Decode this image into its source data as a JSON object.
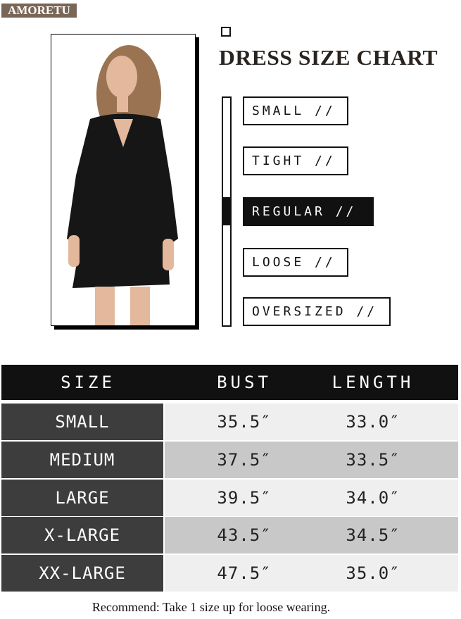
{
  "brand": "AMORETU",
  "title": "DRESS SIZE CHART",
  "fit_scale": {
    "items": [
      "SMALL //",
      "TIGHT //",
      "REGULAR //",
      "LOOSE //",
      "OVERSIZED //"
    ],
    "selected": "REGULAR //"
  },
  "table": {
    "headers": [
      "SIZE",
      "BUST",
      "LENGTH"
    ],
    "rows": [
      {
        "size": "SMALL",
        "bust": "35.5″",
        "length": "33.0″"
      },
      {
        "size": "MEDIUM",
        "bust": "37.5″",
        "length": "33.5″"
      },
      {
        "size": "LARGE",
        "bust": "39.5″",
        "length": "34.0″"
      },
      {
        "size": "X-LARGE",
        "bust": "43.5″",
        "length": "34.5″"
      },
      {
        "size": "XX-LARGE",
        "bust": "47.5″",
        "length": "35.0″"
      }
    ],
    "row_colors": [
      "#efefef",
      "#c8c8c8"
    ],
    "size_col_color": "#3d3d3d"
  },
  "note": "Recommend:  Take 1 size up for loose wearing."
}
